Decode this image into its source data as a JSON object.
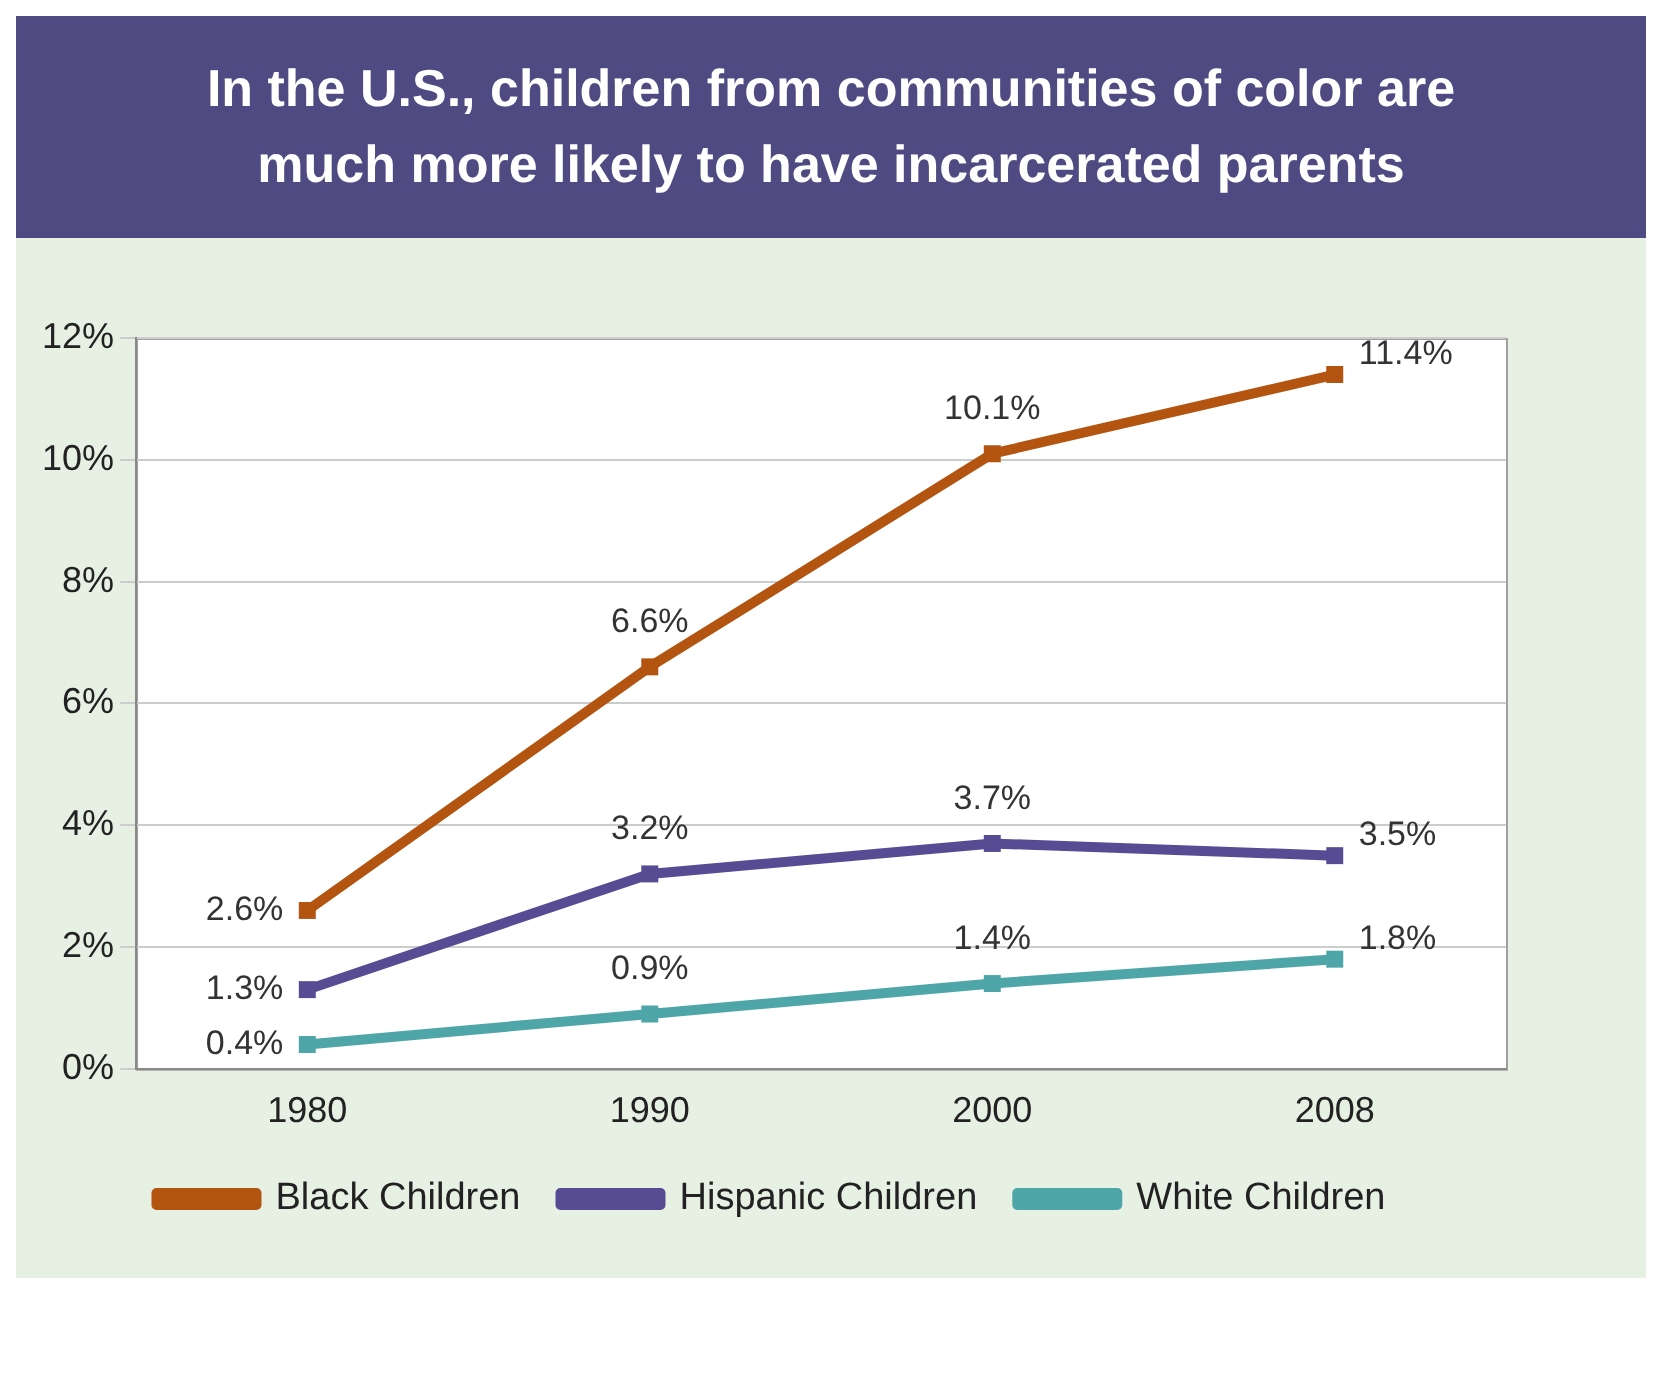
{
  "chart_data": {
    "type": "line",
    "title": "In the U.S., children from communities of color are much more likely to have incarcerated parents",
    "categories": [
      "1980",
      "1990",
      "2000",
      "2008"
    ],
    "series": [
      {
        "name": "Black Children",
        "color": "#b35411",
        "values": [
          2.6,
          6.6,
          10.1,
          11.4
        ],
        "value_labels": [
          "2.6%",
          "6.6%",
          "10.1%",
          "11.4%"
        ]
      },
      {
        "name": "Hispanic Children",
        "color": "#574b94",
        "values": [
          1.3,
          3.2,
          3.7,
          3.5
        ],
        "value_labels": [
          "1.3%",
          "3.2%",
          "3.7%",
          "3.5%"
        ]
      },
      {
        "name": "White Children",
        "color": "#4ea6a8",
        "values": [
          0.4,
          0.9,
          1.4,
          1.8
        ],
        "value_labels": [
          "0.4%",
          "0.9%",
          "1.4%",
          "1.8%"
        ]
      }
    ],
    "ylim": [
      0,
      12
    ],
    "yticks": [
      {
        "value": 0,
        "label": "0%"
      },
      {
        "value": 2,
        "label": "2%"
      },
      {
        "value": 4,
        "label": "4%"
      },
      {
        "value": 6,
        "label": "6%"
      },
      {
        "value": 8,
        "label": "8%"
      },
      {
        "value": 10,
        "label": "10%"
      },
      {
        "value": 12,
        "label": "12%"
      }
    ],
    "grid": "y",
    "legend": "bottom",
    "marker": "square",
    "line_style": "solid"
  }
}
